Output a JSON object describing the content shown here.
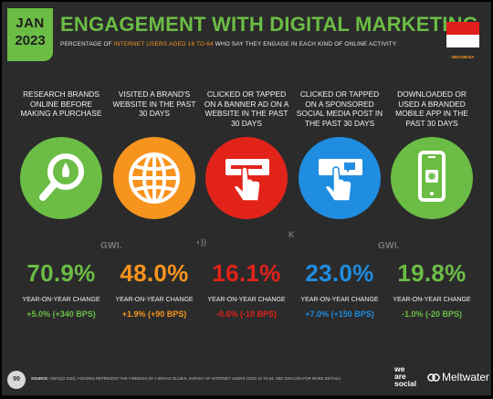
{
  "header": {
    "badge_month": "JAN",
    "badge_year": "2023",
    "title": "ENGAGEMENT WITH DIGITAL MARKETING",
    "subtitle_pre": "PERCENTAGE OF ",
    "subtitle_highlight": "INTERNET USERS AGED 16 TO 64",
    "subtitle_post": " WHO SAY THEY ENGAGE IN EACH KIND OF ONLINE ACTIVITY",
    "country": "INDONESIA"
  },
  "colors": {
    "green": "#6bbd45",
    "orange": "#f7941d",
    "red": "#e2231a",
    "blue": "#1f8de0",
    "background": "#2b2b2b"
  },
  "stats": [
    {
      "label": "RESEARCH BRANDS ONLINE BEFORE MAKING A PURCHASE",
      "icon": "magnifier-icon",
      "value": "70.9%",
      "yoy_label": "YEAR-ON-YEAR CHANGE",
      "change": "+5.0% (+340 BPS)"
    },
    {
      "label": "VISITED A BRAND'S WEBSITE IN THE PAST 30 DAYS",
      "icon": "globe-icon",
      "value": "48.0%",
      "yoy_label": "YEAR-ON-YEAR CHANGE",
      "change": "+1.9% (+90 BPS)"
    },
    {
      "label": "CLICKED OR TAPPED ON A BANNER AD ON A WEBSITE IN THE PAST 30 DAYS",
      "icon": "banner-click-icon",
      "value": "16.1%",
      "yoy_label": "YEAR-ON-YEAR CHANGE",
      "change": "-0.6% (-10 BPS)"
    },
    {
      "label": "CLICKED OR TAPPED ON A SPONSORED SOCIAL MEDIA POST IN THE PAST 30 DAYS",
      "icon": "social-post-click-icon",
      "value": "23.0%",
      "yoy_label": "YEAR-ON-YEAR CHANGE",
      "change": "+7.0% (+150 BPS)"
    },
    {
      "label": "DOWNLOADED OR USED A BRANDED MOBILE APP IN THE PAST 30 DAYS",
      "icon": "mobile-app-icon",
      "value": "19.8%",
      "yoy_label": "YEAR-ON-YEAR CHANGE",
      "change": "-1.0% (-20 BPS)"
    }
  ],
  "watermarks": [
    "GWI.",
    "GWI.",
    "GWI."
  ],
  "footer": {
    "page_number": "99",
    "source_label": "SOURCE:",
    "source_text": "GWI (Q3 2022). FIGURES REPRESENT THE FINDINGS OF A BROAD GLOBAL SURVEY OF INTERNET USERS AGED 16 TO 64. SEE GWI.COM FOR MORE DETAILS.",
    "brand_we": "we",
    "brand_are": "are",
    "brand_social": "social",
    "partner": "Meltwater"
  }
}
